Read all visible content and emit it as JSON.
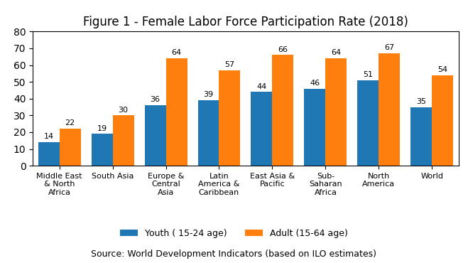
{
  "chart_data": {
    "type": "bar",
    "title": "Figure 1 - Female Labor Force Participation Rate (2018)",
    "annotations": [
      "Source: World Development Indicators (based on ILO estimates)"
    ],
    "categories": [
      "Middle East\n& North\nAfrica",
      "South Asia",
      "Europe &\nCentral\nAsia",
      "Latin\nAmerica &\nCaribbean",
      "East Asia &\nPacific",
      "Sub-\nSaharan\nAfrica",
      "North\nAmerica",
      "World"
    ],
    "series": [
      {
        "name": "Youth ( 15-24 age)",
        "values": [
          14,
          19,
          36,
          39,
          44,
          46,
          51,
          35
        ]
      },
      {
        "name": "Adult (15-64 age)",
        "values": [
          22,
          30,
          64,
          57,
          66,
          64,
          67,
          54
        ]
      }
    ],
    "ylim": [
      0,
      80
    ],
    "yticks": [
      0,
      10,
      20,
      30,
      40,
      50,
      60,
      70,
      80
    ],
    "grid": false,
    "legend": "lower center",
    "data_labels": true
  }
}
